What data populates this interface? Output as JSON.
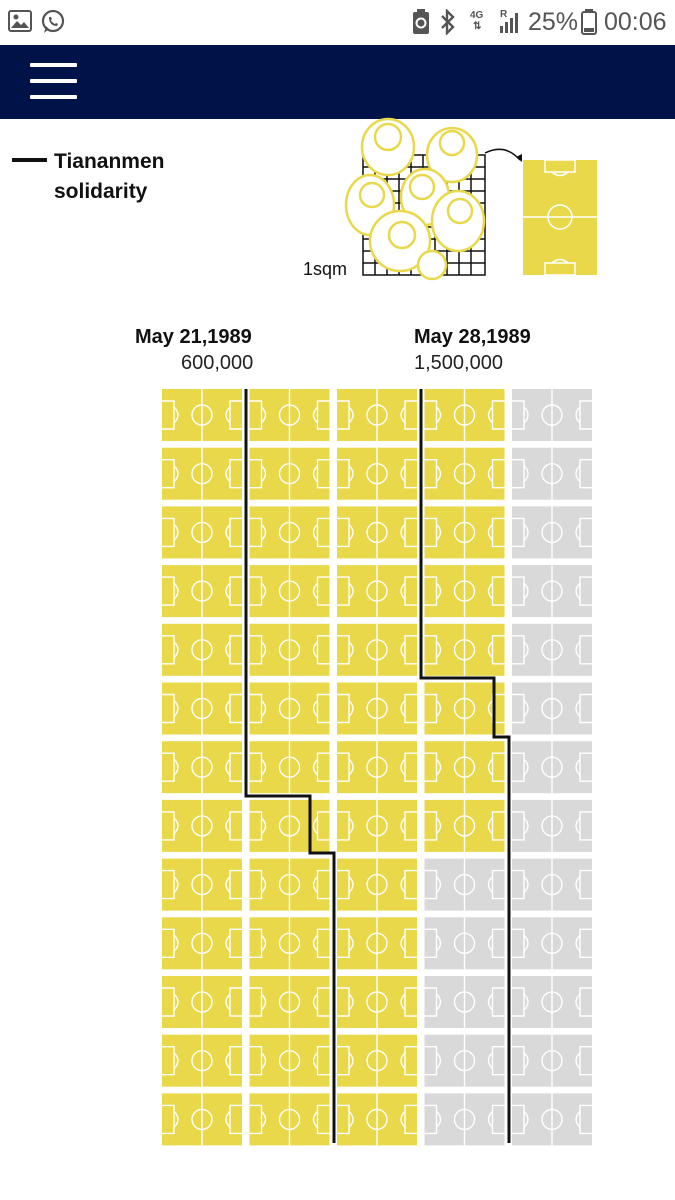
{
  "status_bar": {
    "network": "4G",
    "signal_label": "R",
    "battery": "25%",
    "time": "00:06",
    "icons": [
      "image-icon",
      "whatsapp-icon",
      "battery-saver-icon",
      "bluetooth-icon",
      "signal-icon",
      "battery-icon"
    ]
  },
  "navbar": {
    "menu_icon": "hamburger-menu-icon",
    "background": "#001348"
  },
  "legend": {
    "label": "Tiananmen solidarity"
  },
  "scale": {
    "unit_label": "1sqm",
    "field_color": "#e8d84a"
  },
  "markers": [
    {
      "date": "May 21,1989",
      "count": "600,000"
    },
    {
      "date": "May 28,1989",
      "count": "1,500,000"
    }
  ],
  "chart_data": {
    "type": "pictogram",
    "unit": "football pitch",
    "columns": 5,
    "rows": 13,
    "colors": {
      "filled": "#e8d84a",
      "empty": "#d9d9d9",
      "line": "#111111"
    },
    "filled_rows_per_column": [
      13,
      13,
      13,
      8,
      0
    ],
    "series": [
      {
        "date": "May 21,1989",
        "value": 600000
      },
      {
        "date": "May 28,1989",
        "value": 1500000
      }
    ]
  }
}
